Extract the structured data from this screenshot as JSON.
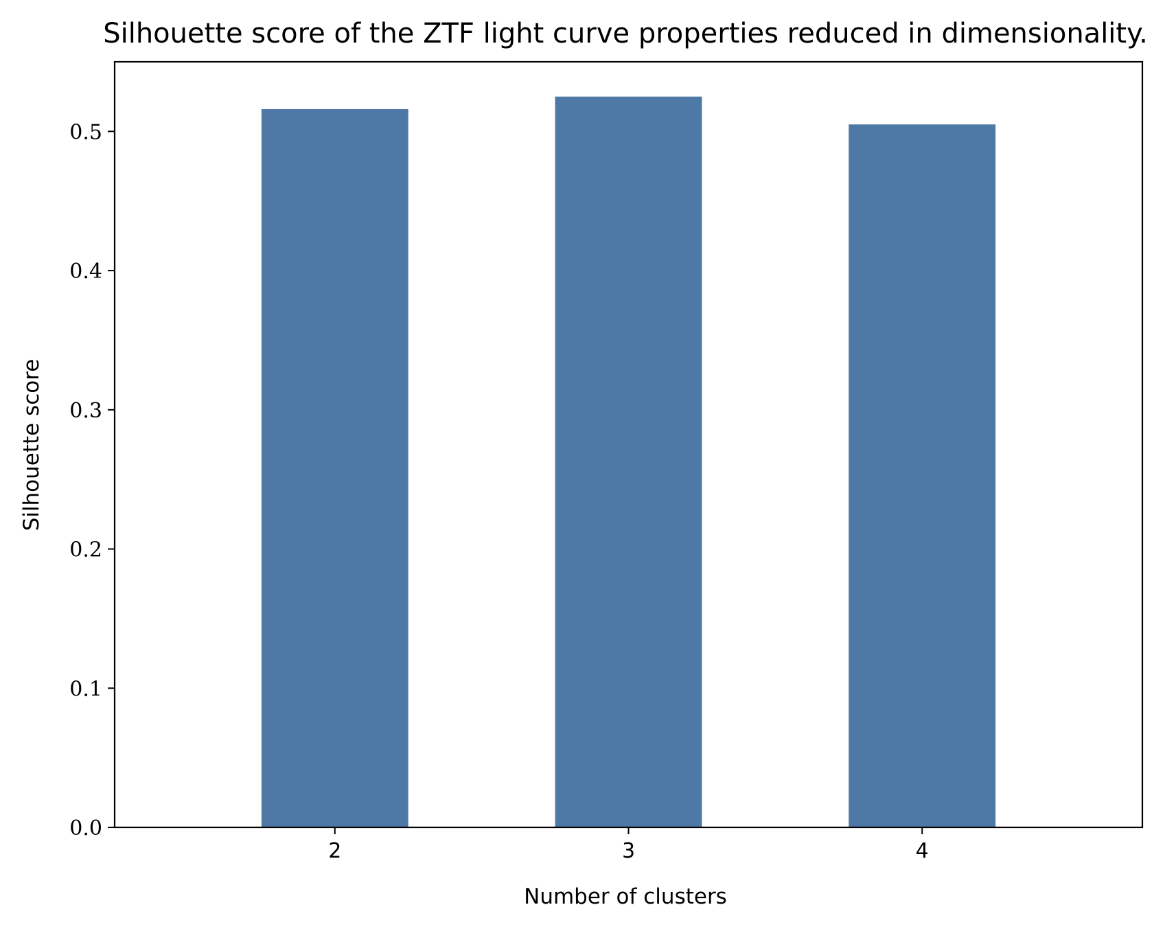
{
  "chart_data": {
    "type": "bar",
    "title": "Silhouette score of the ZTF light curve properties reduced in dimensionality.",
    "xlabel": "Number of clusters",
    "ylabel": "Silhouette score",
    "categories": [
      "2",
      "3",
      "4"
    ],
    "values": [
      0.516,
      0.525,
      0.505
    ],
    "ylim": [
      0,
      0.55
    ],
    "yticks": [
      0.0,
      0.1,
      0.2,
      0.3,
      0.4,
      0.5
    ],
    "ytick_labels": [
      "0.0",
      "0.1",
      "0.2",
      "0.3",
      "0.4",
      "0.5"
    ],
    "grid": false,
    "bar_color": "#4e78a5"
  }
}
